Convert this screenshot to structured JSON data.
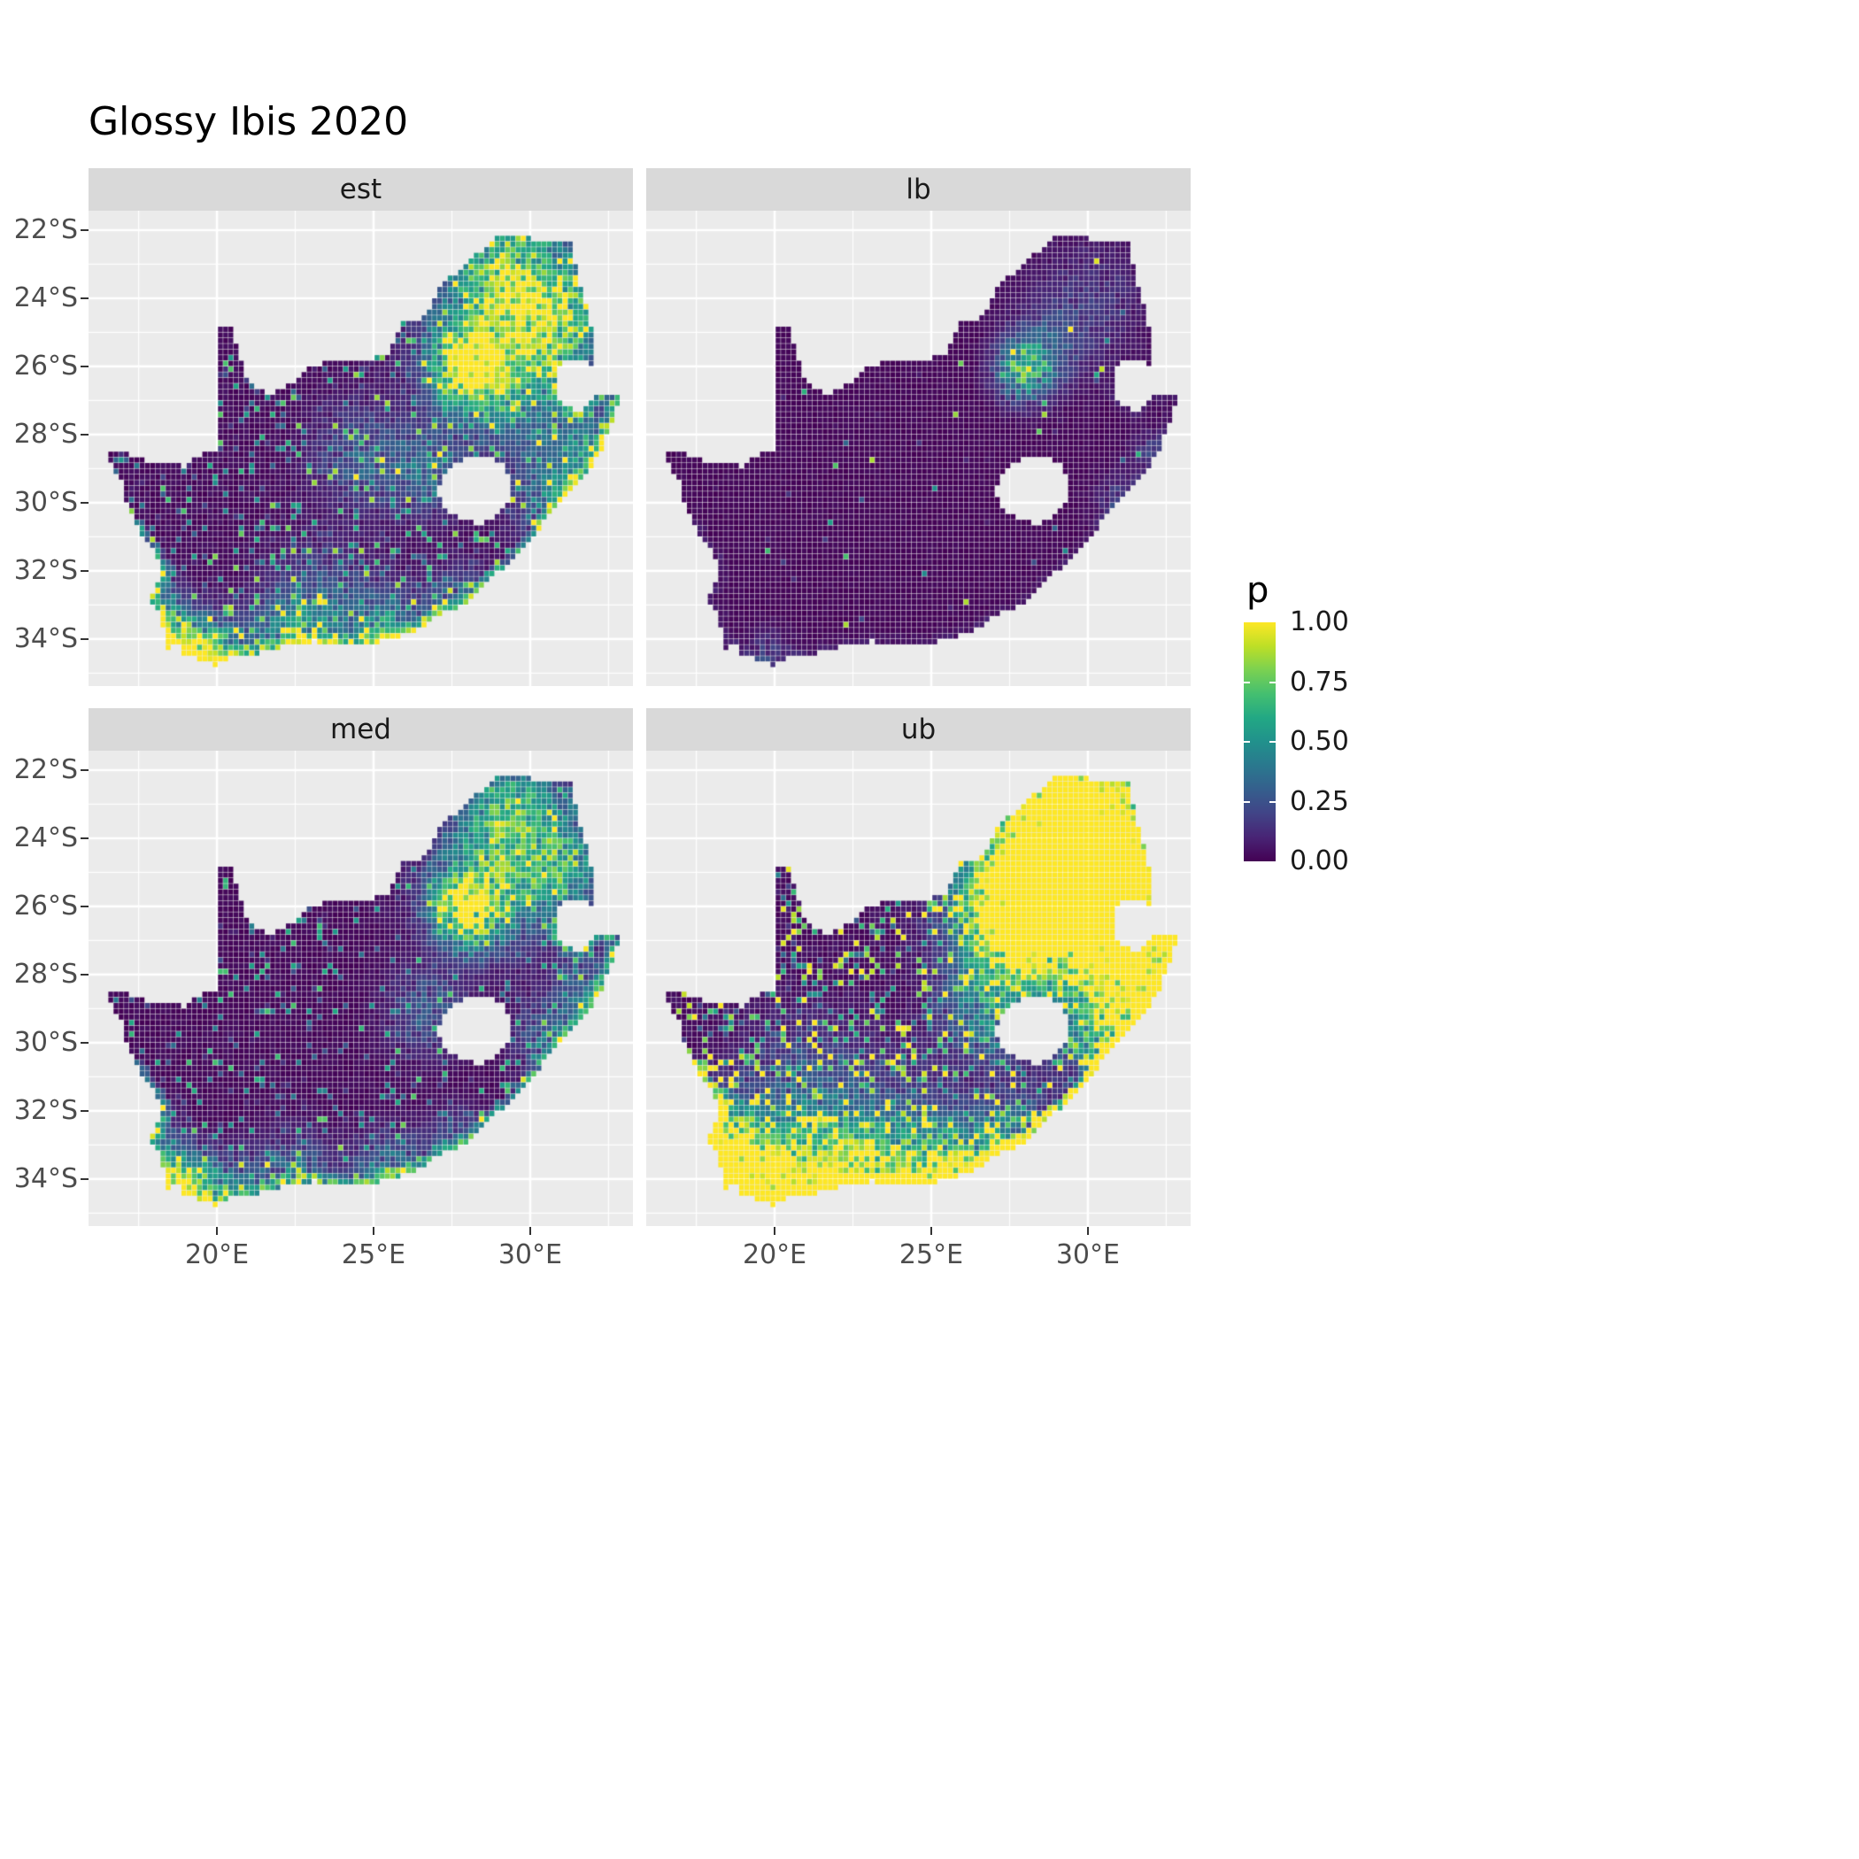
{
  "title": "Glossy Ibis 2020",
  "legend": {
    "title": "p",
    "ticks": [
      {
        "v": 1.0,
        "label": "1.00"
      },
      {
        "v": 0.75,
        "label": "0.75"
      },
      {
        "v": 0.5,
        "label": "0.50"
      },
      {
        "v": 0.25,
        "label": "0.25"
      },
      {
        "v": 0.0,
        "label": "0.00"
      }
    ]
  },
  "colors": {
    "background": "#FFFFFF",
    "panel_bg": "#EBEBEB",
    "strip_bg": "#D9D9D9",
    "grid_major": "#FFFFFF",
    "grid_minor": "#FFFFFF",
    "axis_text": "#4D4D4D",
    "strip_text": "#1A1A1A",
    "tick_mark": "#333333",
    "raster_low": "#440154",
    "raster_high": "#FDE725"
  },
  "viridis": [
    {
      "t": 0.0,
      "c": "#440154"
    },
    {
      "t": 0.1,
      "c": "#482475"
    },
    {
      "t": 0.2,
      "c": "#414487"
    },
    {
      "t": 0.3,
      "c": "#355F8D"
    },
    {
      "t": 0.4,
      "c": "#2A788E"
    },
    {
      "t": 0.5,
      "c": "#21918C"
    },
    {
      "t": 0.6,
      "c": "#22A884"
    },
    {
      "t": 0.7,
      "c": "#44BF70"
    },
    {
      "t": 0.8,
      "c": "#7AD151"
    },
    {
      "t": 0.9,
      "c": "#BDDF26"
    },
    {
      "t": 1.0,
      "c": "#FDE725"
    }
  ],
  "chart_data": {
    "type": "heatmap",
    "title": "Glossy Ibis 2020",
    "description": "Faceted raster map of South Africa showing occupancy probability p (viridis scale 0-1) for Glossy Ibis in 2020; facets are estimate, lower bound, median and upper bound.",
    "facets": [
      {
        "id": "est",
        "label": "est"
      },
      {
        "id": "lb",
        "label": "lb"
      },
      {
        "id": "med",
        "label": "med"
      },
      {
        "id": "ub",
        "label": "ub"
      }
    ],
    "legend": {
      "title": "p",
      "range": [
        0,
        1
      ],
      "breaks": [
        0,
        0.25,
        0.5,
        0.75,
        1
      ],
      "position": "right"
    },
    "axes": {
      "x": {
        "domain": [
          15.9,
          33.28
        ],
        "major": [
          {
            "v": 20,
            "label": "20°E"
          },
          {
            "v": 25,
            "label": "25°E"
          },
          {
            "v": 30,
            "label": "30°E"
          }
        ],
        "minor": [
          17.5,
          22.5,
          27.5,
          32.5
        ]
      },
      "y": {
        "domain": [
          -35.38,
          -21.43
        ],
        "major": [
          {
            "v": -22,
            "label": "22°S"
          },
          {
            "v": -24,
            "label": "24°S"
          },
          {
            "v": -26,
            "label": "26°S"
          },
          {
            "v": -28,
            "label": "28°S"
          },
          {
            "v": -30,
            "label": "30°S"
          },
          {
            "v": -32,
            "label": "32°S"
          },
          {
            "v": -34,
            "label": "34°S"
          }
        ],
        "minor": [
          -23,
          -25,
          -27,
          -29,
          -31,
          -33,
          -35
        ]
      }
    },
    "cell_deg": 0.1667,
    "map": {
      "outline": [
        [
          16.45,
          -28.58
        ],
        [
          17.05,
          -28.45
        ],
        [
          17.45,
          -28.7
        ],
        [
          18.2,
          -28.88
        ],
        [
          19.0,
          -28.93
        ],
        [
          19.55,
          -28.55
        ],
        [
          19.99,
          -28.43
        ],
        [
          19.99,
          -24.76
        ],
        [
          20.45,
          -24.9
        ],
        [
          20.7,
          -25.6
        ],
        [
          20.95,
          -26.25
        ],
        [
          21.15,
          -26.6
        ],
        [
          21.7,
          -26.87
        ],
        [
          22.25,
          -26.6
        ],
        [
          22.9,
          -26.1
        ],
        [
          23.6,
          -25.85
        ],
        [
          24.2,
          -25.75
        ],
        [
          24.75,
          -25.82
        ],
        [
          25.35,
          -25.7
        ],
        [
          25.6,
          -25.45
        ],
        [
          25.9,
          -24.75
        ],
        [
          26.45,
          -24.62
        ],
        [
          26.85,
          -24.28
        ],
        [
          27.15,
          -23.65
        ],
        [
          27.7,
          -23.2
        ],
        [
          28.25,
          -22.75
        ],
        [
          29.05,
          -22.15
        ],
        [
          29.65,
          -22.15
        ],
        [
          30.4,
          -22.32
        ],
        [
          31.3,
          -22.4
        ],
        [
          31.55,
          -23.5
        ],
        [
          31.87,
          -24.3
        ],
        [
          32.0,
          -25.1
        ],
        [
          32.0,
          -25.62
        ],
        [
          31.95,
          -25.95
        ],
        [
          31.3,
          -25.78
        ],
        [
          30.95,
          -26.0
        ],
        [
          30.78,
          -26.45
        ],
        [
          30.82,
          -26.82
        ],
        [
          31.1,
          -27.2
        ],
        [
          31.6,
          -27.32
        ],
        [
          31.96,
          -26.95
        ],
        [
          32.35,
          -26.86
        ],
        [
          32.9,
          -26.86
        ],
        [
          32.55,
          -27.8
        ],
        [
          32.25,
          -28.6
        ],
        [
          31.6,
          -29.35
        ],
        [
          31.05,
          -29.87
        ],
        [
          30.3,
          -30.75
        ],
        [
          29.55,
          -31.62
        ],
        [
          28.6,
          -32.3
        ],
        [
          27.9,
          -33.03
        ],
        [
          27.1,
          -33.3
        ],
        [
          26.4,
          -33.75
        ],
        [
          25.65,
          -33.98
        ],
        [
          24.85,
          -34.2
        ],
        [
          23.7,
          -34.1
        ],
        [
          23.0,
          -34.08
        ],
        [
          22.2,
          -34.2
        ],
        [
          21.3,
          -34.45
        ],
        [
          20.5,
          -34.48
        ],
        [
          20.0,
          -34.82
        ],
        [
          19.4,
          -34.62
        ],
        [
          18.85,
          -34.4
        ],
        [
          18.75,
          -34.08
        ],
        [
          18.45,
          -34.35
        ],
        [
          18.3,
          -33.9
        ],
        [
          18.25,
          -33.35
        ],
        [
          17.85,
          -32.78
        ],
        [
          18.3,
          -32.05
        ],
        [
          18.1,
          -31.55
        ],
        [
          17.6,
          -30.9
        ],
        [
          17.25,
          -30.35
        ],
        [
          16.95,
          -29.4
        ]
      ],
      "lesotho": [
        [
          27.0,
          -29.65
        ],
        [
          27.45,
          -29.0
        ],
        [
          27.9,
          -28.75
        ],
        [
          28.65,
          -28.6
        ],
        [
          29.15,
          -28.9
        ],
        [
          29.45,
          -29.35
        ],
        [
          29.4,
          -29.75
        ],
        [
          29.1,
          -30.2
        ],
        [
          28.5,
          -30.65
        ],
        [
          27.95,
          -30.55
        ],
        [
          27.35,
          -30.2
        ]
      ]
    },
    "facet_params": {
      "est": {
        "base": 0.05,
        "sp_prob": 0.14,
        "sp_max": 0.8,
        "sp_exp": 1.2,
        "coast": 0.55,
        "hotspots": [
          [
            28.0,
            -26.1,
            0.7,
            1.25
          ],
          [
            28.7,
            -25.3,
            1.5,
            0.5
          ],
          [
            30.1,
            -23.9,
            1.7,
            0.5
          ],
          [
            29.2,
            -23.0,
            1.1,
            0.45
          ],
          [
            31.0,
            -24.9,
            1.0,
            0.45
          ],
          [
            30.9,
            -29.9,
            0.9,
            0.5
          ],
          [
            32.0,
            -28.4,
            0.7,
            0.5
          ],
          [
            29.8,
            -27.3,
            1.2,
            0.3
          ],
          [
            18.6,
            -34.0,
            0.6,
            0.95
          ],
          [
            19.8,
            -34.55,
            0.8,
            0.85
          ],
          [
            22.4,
            -34.15,
            0.9,
            0.55
          ],
          [
            25.5,
            -33.9,
            0.8,
            0.6
          ],
          [
            27.8,
            -33.0,
            0.7,
            0.45
          ],
          [
            18.1,
            -32.7,
            0.5,
            0.45
          ],
          [
            26.7,
            -29.1,
            0.9,
            0.35
          ],
          [
            24.6,
            -28.6,
            1.0,
            0.3
          ],
          [
            23.5,
            -33.0,
            1.2,
            0.3
          ]
        ]
      },
      "lb": {
        "base": 0.03,
        "sp_prob": 0.02,
        "sp_max": 0.9,
        "sp_exp": 2.6,
        "coast": 0.06,
        "hotspots": [
          [
            28.0,
            -26.1,
            0.6,
            0.75
          ],
          [
            28.8,
            -25.3,
            0.9,
            0.22
          ],
          [
            30.2,
            -24.0,
            1.2,
            0.14
          ],
          [
            31.0,
            -29.9,
            0.5,
            0.18
          ],
          [
            19.8,
            -34.5,
            0.5,
            0.18
          ],
          [
            32.0,
            -28.5,
            0.4,
            0.18
          ]
        ]
      },
      "med": {
        "base": 0.04,
        "sp_prob": 0.11,
        "sp_max": 0.7,
        "sp_exp": 1.3,
        "coast": 0.5,
        "hotspots": [
          [
            28.0,
            -26.1,
            0.7,
            1.15
          ],
          [
            28.7,
            -25.3,
            1.4,
            0.45
          ],
          [
            30.1,
            -23.9,
            1.6,
            0.42
          ],
          [
            29.2,
            -23.0,
            1.0,
            0.38
          ],
          [
            31.0,
            -24.9,
            0.9,
            0.38
          ],
          [
            30.9,
            -29.9,
            0.85,
            0.45
          ],
          [
            32.0,
            -28.4,
            0.65,
            0.42
          ],
          [
            18.6,
            -34.0,
            0.6,
            0.85
          ],
          [
            19.8,
            -34.55,
            0.8,
            0.75
          ],
          [
            22.4,
            -34.15,
            0.9,
            0.48
          ],
          [
            25.5,
            -33.9,
            0.8,
            0.5
          ],
          [
            27.8,
            -33.0,
            0.65,
            0.38
          ],
          [
            18.1,
            -32.7,
            0.5,
            0.38
          ],
          [
            26.7,
            -29.1,
            0.85,
            0.3
          ]
        ]
      },
      "ub": {
        "base": 0.06,
        "sp_prob": 0.22,
        "sp_max": 1.0,
        "sp_exp": 0.8,
        "coast": 1.3,
        "hotspots": [
          [
            28.0,
            -26.1,
            1.15,
            1.7
          ],
          [
            28.9,
            -25.2,
            1.9,
            0.95
          ],
          [
            30.3,
            -24.0,
            1.9,
            0.85
          ],
          [
            29.5,
            -22.8,
            1.3,
            0.75
          ],
          [
            31.2,
            -25.3,
            1.1,
            0.85
          ],
          [
            31.0,
            -27.6,
            1.2,
            0.75
          ],
          [
            30.9,
            -29.9,
            1.1,
            0.8
          ],
          [
            32.2,
            -28.3,
            0.8,
            0.8
          ],
          [
            26.9,
            -28.9,
            1.1,
            0.5
          ],
          [
            18.7,
            -34.1,
            0.9,
            1.4
          ],
          [
            20.3,
            -34.5,
            1.2,
            1.2
          ],
          [
            22.4,
            -34.15,
            1.1,
            0.9
          ],
          [
            25.5,
            -33.9,
            1.0,
            0.9
          ],
          [
            27.8,
            -33.0,
            0.9,
            0.7
          ],
          [
            18.2,
            -32.8,
            0.9,
            0.8
          ],
          [
            24.0,
            -33.1,
            1.4,
            0.4
          ],
          [
            21.0,
            -31.5,
            1.4,
            0.3
          ]
        ]
      }
    }
  }
}
